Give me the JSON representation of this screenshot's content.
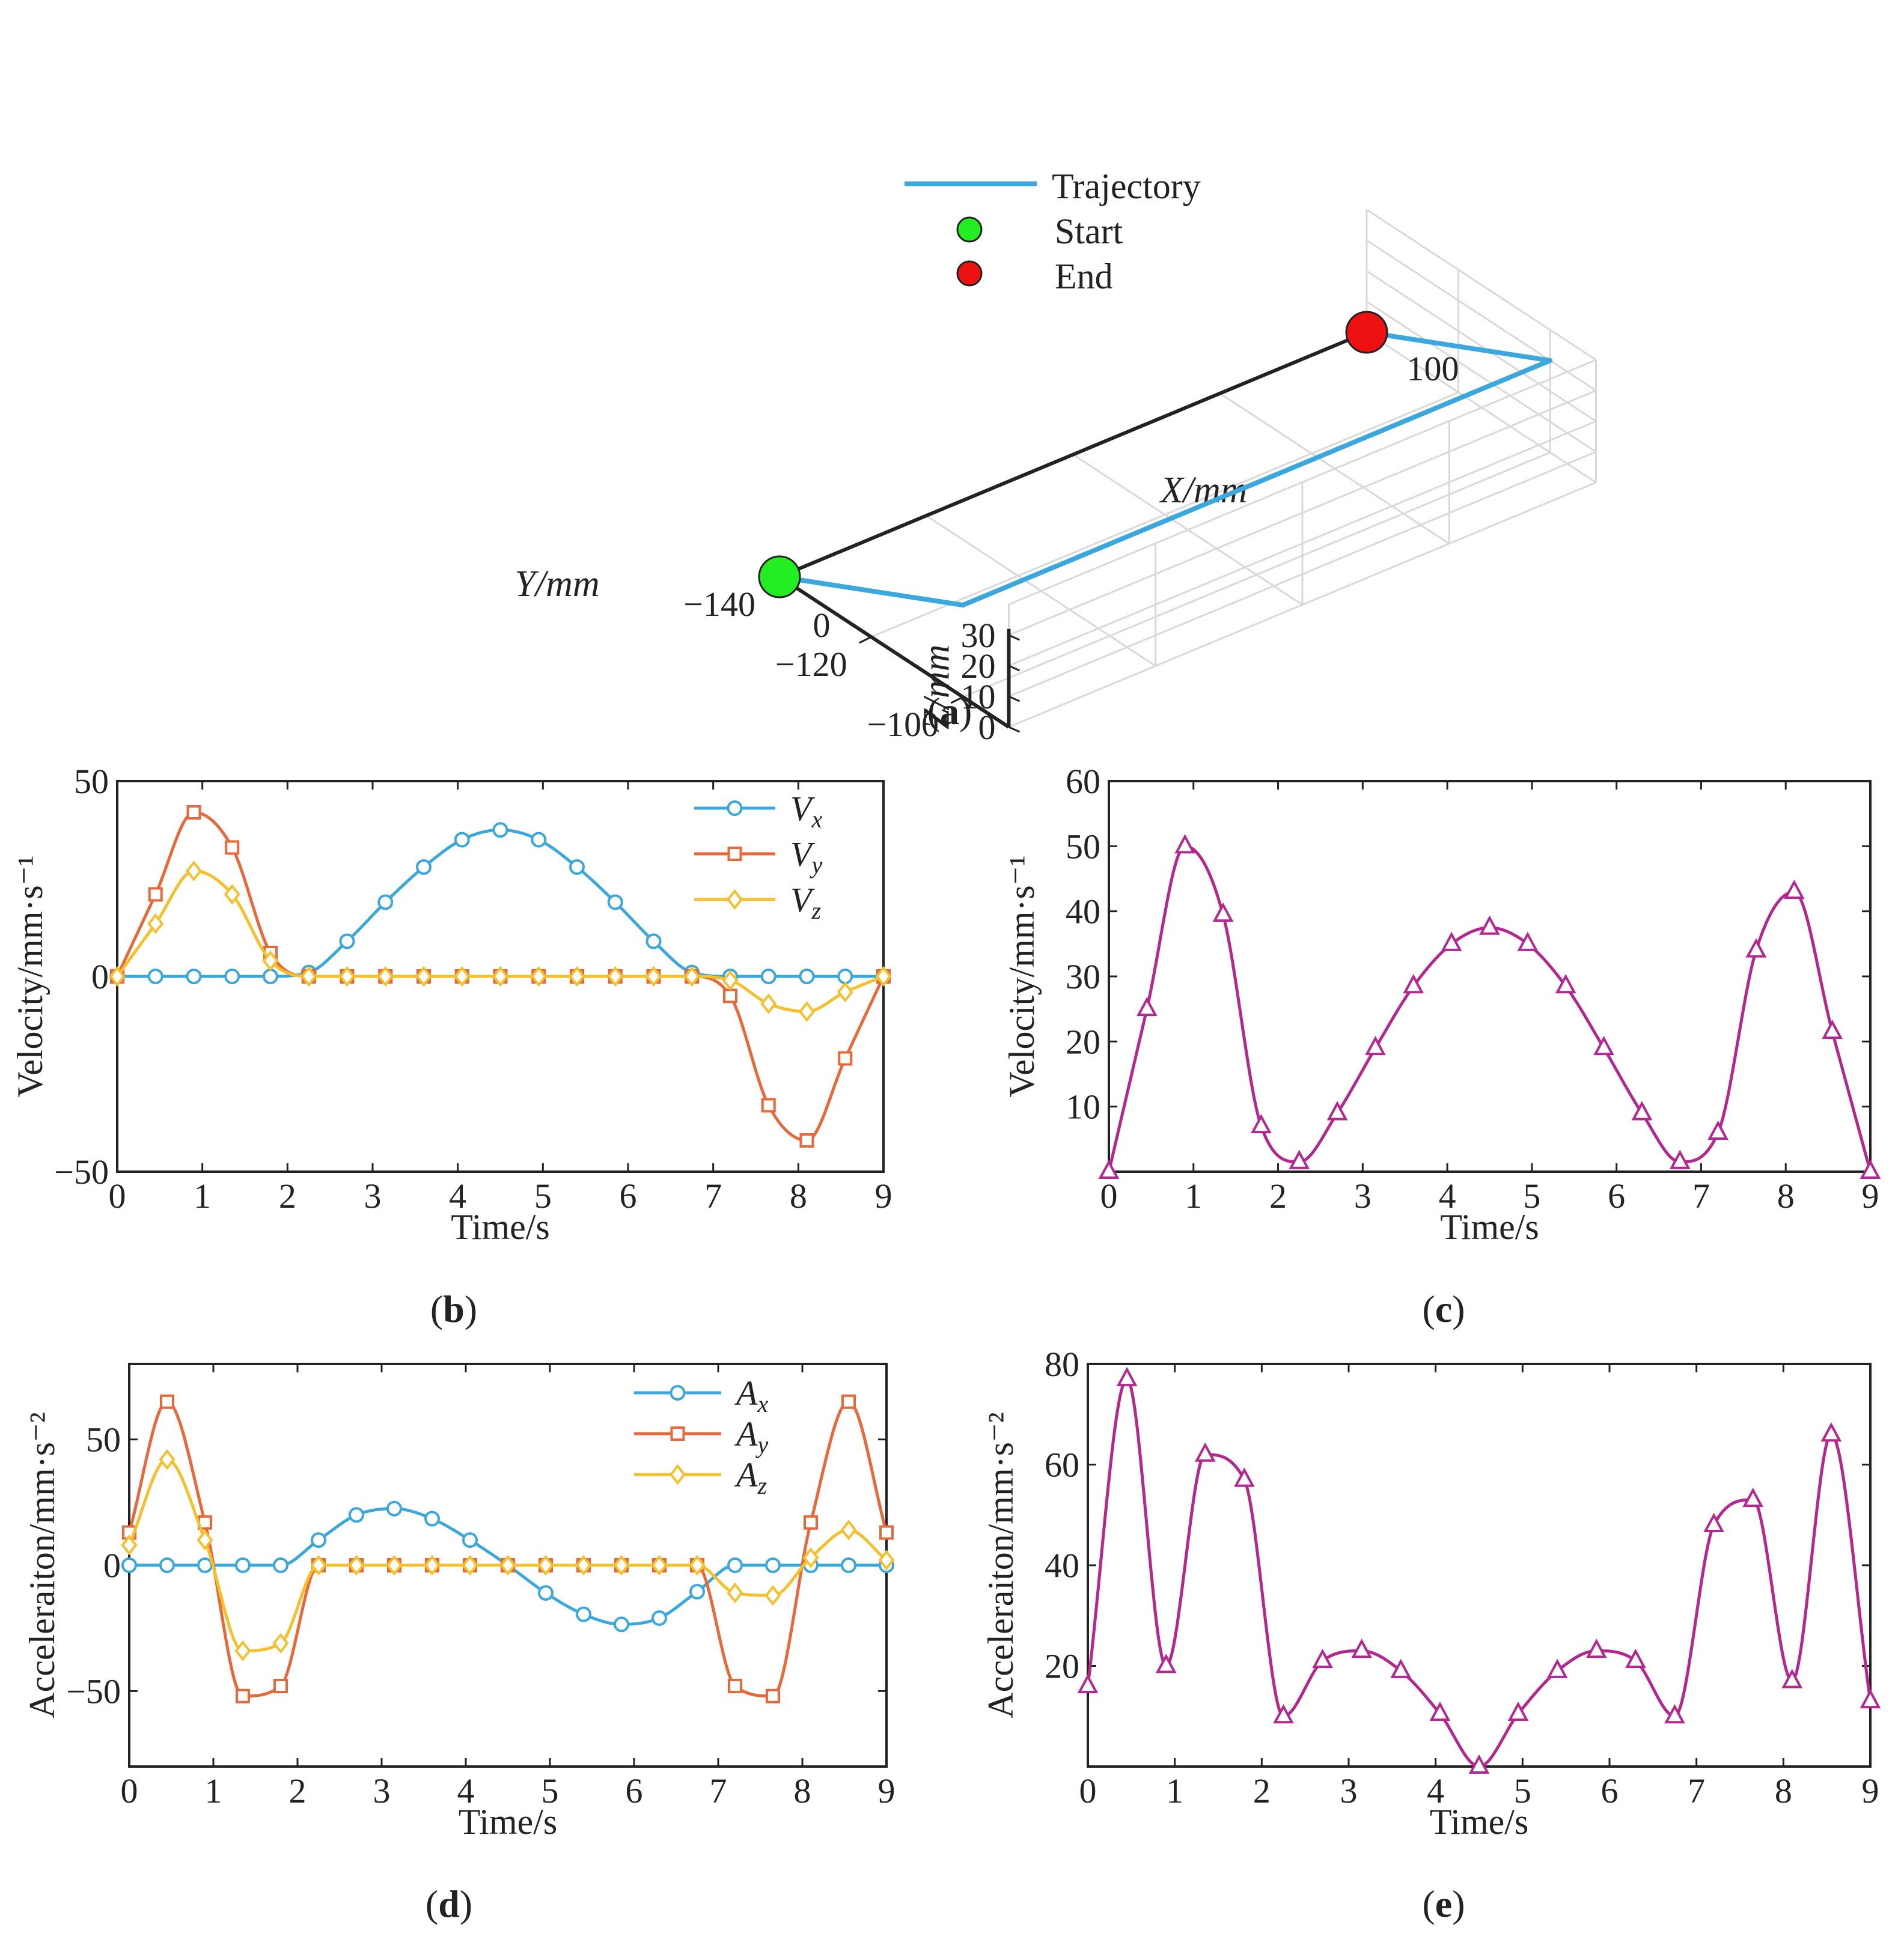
{
  "colors": {
    "blue": "#3aa8dc",
    "orange": "#e8683a",
    "yellow": "#f5c02c",
    "magenta": "#b3278f",
    "green": "#22ee22",
    "red": "#ee1111",
    "axis": "#222222",
    "grid": "#d9d9d9"
  },
  "chart_data": [
    {
      "id": "a",
      "type": "line3d",
      "caption": "a",
      "xlabel": "X/mm",
      "ylabel": "Y/mm",
      "zlabel": "Z/mm",
      "x_ticks": [
        "0",
        "100"
      ],
      "y_ticks": [
        "−100",
        "−120",
        "−140"
      ],
      "z_ticks": [
        "0",
        "10",
        "20",
        "30"
      ],
      "xlim": [
        0,
        100
      ],
      "ylim": [
        -140,
        -90
      ],
      "zlim": [
        0,
        30
      ],
      "trajectory": [
        {
          "x": 0,
          "y": -140,
          "z": 0
        },
        {
          "x": 0,
          "y": -100,
          "z": 30
        },
        {
          "x": 100,
          "y": -100,
          "z": 30
        },
        {
          "x": 100,
          "y": -140,
          "z": 0
        }
      ],
      "start": {
        "x": 0,
        "y": -140,
        "z": 0
      },
      "end": {
        "x": 100,
        "y": -140,
        "z": 0
      },
      "legend": [
        "Trajectory",
        "Start",
        "End"
      ]
    },
    {
      "id": "b",
      "type": "line",
      "caption": "b",
      "xlabel": "Time/s",
      "ylabel": "Velocity/mm·s⁻¹",
      "xlim": [
        0,
        9
      ],
      "ylim": [
        -50,
        50
      ],
      "x_ticks": [
        "0",
        "1",
        "2",
        "3",
        "4",
        "5",
        "6",
        "7",
        "8",
        "9"
      ],
      "y_ticks": [
        "−50",
        "0",
        "50"
      ],
      "y_tick_values": [
        -50,
        0,
        50
      ],
      "marker_x": [
        0,
        0.45,
        0.9,
        1.35,
        1.8,
        2.25,
        2.7,
        3.15,
        3.6,
        4.05,
        4.5,
        4.95,
        5.4,
        5.85,
        6.3,
        6.75,
        7.2,
        7.65,
        8.1,
        8.55,
        9
      ],
      "series": [
        {
          "name": "V",
          "sub": "x",
          "color": "blue",
          "marker": "circle",
          "values": [
            0,
            0,
            0,
            0,
            0,
            1,
            9,
            19,
            28,
            35,
            37.5,
            35,
            28,
            19,
            9,
            1,
            0,
            0,
            0,
            0,
            0
          ]
        },
        {
          "name": "V",
          "sub": "y",
          "color": "orange",
          "marker": "square",
          "values": [
            0,
            21,
            42,
            33,
            6,
            0,
            0,
            0,
            0,
            0,
            0,
            0,
            0,
            0,
            0,
            0,
            -5,
            -33,
            -42,
            -21,
            0
          ]
        },
        {
          "name": "V",
          "sub": "z",
          "color": "yellow",
          "marker": "diamond",
          "values": [
            0,
            13.5,
            27,
            21,
            4,
            0,
            0,
            0,
            0,
            0,
            0,
            0,
            0,
            0,
            0,
            0,
            -1,
            -7,
            -9,
            -4,
            0
          ]
        }
      ]
    },
    {
      "id": "c",
      "type": "line",
      "caption": "c",
      "xlabel": "Time/s",
      "ylabel": "Velocity/mm·s⁻¹",
      "xlim": [
        0,
        9
      ],
      "ylim": [
        0,
        60
      ],
      "x_ticks": [
        "0",
        "1",
        "2",
        "3",
        "4",
        "5",
        "6",
        "7",
        "8",
        "9"
      ],
      "y_ticks": [
        "10",
        "20",
        "30",
        "40",
        "50",
        "60"
      ],
      "y_tick_values": [
        10,
        20,
        30,
        40,
        50,
        60
      ],
      "marker_x": [
        0,
        0.45,
        0.9,
        1.35,
        1.8,
        2.25,
        2.7,
        3.15,
        3.6,
        4.05,
        4.5,
        4.95,
        5.4,
        5.85,
        6.3,
        6.75,
        7.2,
        7.65,
        8.1,
        8.55,
        9
      ],
      "series": [
        {
          "name": "V",
          "sub": "",
          "color": "magenta",
          "marker": "triangle",
          "values": [
            0,
            25,
            50,
            39.5,
            7,
            1.5,
            9,
            19,
            28.5,
            35,
            37.5,
            35,
            28.5,
            19,
            9,
            1.5,
            6,
            34,
            43,
            21.5,
            0
          ]
        }
      ]
    },
    {
      "id": "d",
      "type": "line",
      "caption": "d",
      "xlabel": "Time/s",
      "ylabel": "Acceleraiton/mm·s⁻²",
      "xlim": [
        0,
        9
      ],
      "ylim": [
        -80,
        80
      ],
      "x_ticks": [
        "0",
        "1",
        "2",
        "3",
        "4",
        "5",
        "6",
        "7",
        "8",
        "9"
      ],
      "y_ticks": [
        "−50",
        "0",
        "50"
      ],
      "y_tick_values": [
        -50,
        0,
        50
      ],
      "marker_x": [
        0,
        0.45,
        0.9,
        1.35,
        1.8,
        2.25,
        2.7,
        3.15,
        3.6,
        4.05,
        4.5,
        4.95,
        5.4,
        5.85,
        6.3,
        6.75,
        7.2,
        7.65,
        8.1,
        8.55,
        9
      ],
      "series": [
        {
          "name": "A",
          "sub": "x",
          "color": "blue",
          "marker": "circle",
          "values": [
            0,
            0,
            0,
            0,
            0,
            10,
            20,
            22.5,
            18.5,
            10,
            0,
            -11,
            -19.5,
            -23.5,
            -21,
            -10.5,
            0,
            0,
            0,
            0,
            0
          ]
        },
        {
          "name": "A",
          "sub": "y",
          "color": "orange",
          "marker": "square",
          "values": [
            13,
            65,
            17,
            -52,
            -48,
            0,
            0,
            0,
            0,
            0,
            0,
            0,
            0,
            0,
            0,
            0,
            -48,
            -52,
            17,
            65,
            13
          ]
        },
        {
          "name": "A",
          "sub": "z",
          "color": "yellow",
          "marker": "diamond",
          "values": [
            8,
            42,
            10,
            -34,
            -31,
            0,
            0,
            0,
            0,
            0,
            0,
            0,
            0,
            0,
            0,
            0,
            -11,
            -12,
            3,
            14,
            2
          ]
        }
      ]
    },
    {
      "id": "e",
      "type": "line",
      "caption": "e",
      "xlabel": "Time/s",
      "ylabel": "Acceleraiton/mm·s⁻²",
      "xlim": [
        0,
        9
      ],
      "ylim": [
        0,
        80
      ],
      "x_ticks": [
        "0",
        "1",
        "2",
        "3",
        "4",
        "5",
        "6",
        "7",
        "8",
        "9"
      ],
      "y_ticks": [
        "20",
        "40",
        "60",
        "80"
      ],
      "y_tick_values": [
        20,
        40,
        60,
        80
      ],
      "marker_x": [
        0,
        0.45,
        0.9,
        1.35,
        1.8,
        2.25,
        2.7,
        3.15,
        3.6,
        4.05,
        4.5,
        4.95,
        5.4,
        5.85,
        6.3,
        6.75,
        7.2,
        7.65,
        8.1,
        8.55,
        9
      ],
      "series": [
        {
          "name": "A",
          "sub": "",
          "color": "magenta",
          "marker": "triangle",
          "values": [
            16,
            77,
            20,
            62,
            57,
            10,
            21,
            23,
            19,
            10.5,
            0,
            10.5,
            19,
            23,
            21,
            10,
            48,
            53,
            17,
            66,
            13
          ]
        }
      ]
    }
  ]
}
